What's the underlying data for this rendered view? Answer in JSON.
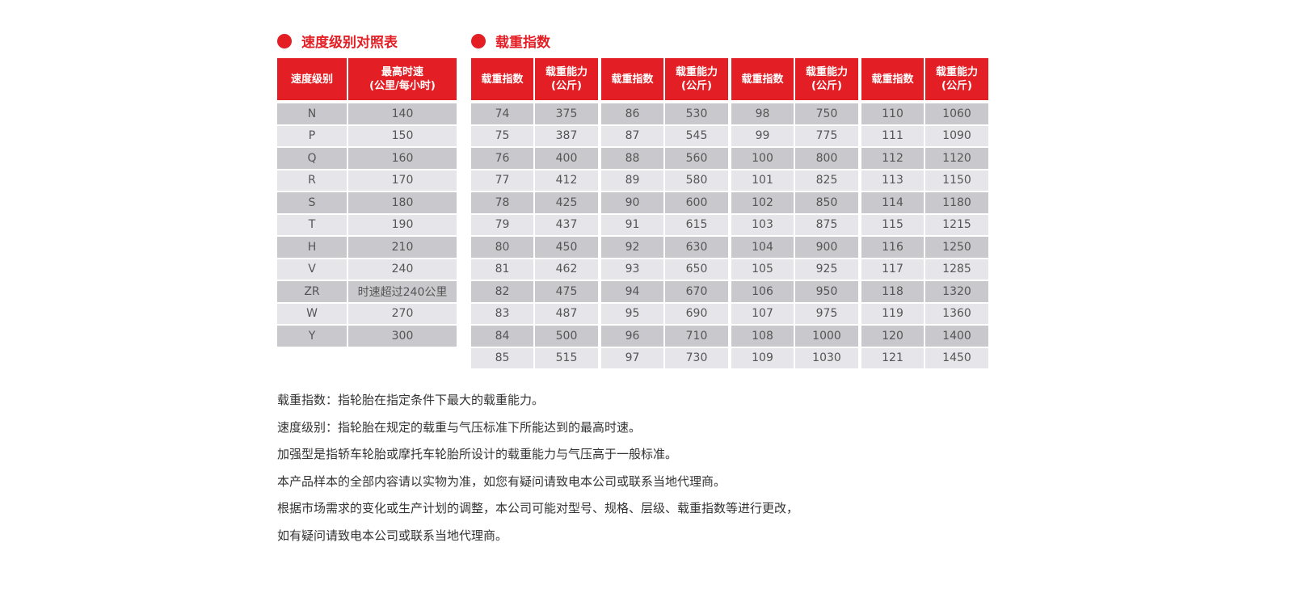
{
  "colors": {
    "accent": "#e31e24",
    "row_dark": "#c9c8cc",
    "row_light": "#e6e5ea"
  },
  "speed": {
    "title": "速度级别对照表",
    "headers": [
      "速度级别",
      "最高时速",
      "(公里/每小时)"
    ],
    "rows": [
      [
        "N",
        "140"
      ],
      [
        "P",
        "150"
      ],
      [
        "Q",
        "160"
      ],
      [
        "R",
        "170"
      ],
      [
        "S",
        "180"
      ],
      [
        "T",
        "190"
      ],
      [
        "H",
        "210"
      ],
      [
        "V",
        "240"
      ],
      [
        "ZR",
        "时速超过240公里"
      ],
      [
        "W",
        "270"
      ],
      [
        "Y",
        "300"
      ]
    ]
  },
  "load": {
    "title": "载重指数",
    "headers": [
      "载重指数",
      "载重能力",
      "(公斤)"
    ],
    "groups": [
      [
        [
          "74",
          "375"
        ],
        [
          "75",
          "387"
        ],
        [
          "76",
          "400"
        ],
        [
          "77",
          "412"
        ],
        [
          "78",
          "425"
        ],
        [
          "79",
          "437"
        ],
        [
          "80",
          "450"
        ],
        [
          "81",
          "462"
        ],
        [
          "82",
          "475"
        ],
        [
          "83",
          "487"
        ],
        [
          "84",
          "500"
        ],
        [
          "85",
          "515"
        ]
      ],
      [
        [
          "86",
          "530"
        ],
        [
          "87",
          "545"
        ],
        [
          "88",
          "560"
        ],
        [
          "89",
          "580"
        ],
        [
          "90",
          "600"
        ],
        [
          "91",
          "615"
        ],
        [
          "92",
          "630"
        ],
        [
          "93",
          "650"
        ],
        [
          "94",
          "670"
        ],
        [
          "95",
          "690"
        ],
        [
          "96",
          "710"
        ],
        [
          "97",
          "730"
        ]
      ],
      [
        [
          "98",
          "750"
        ],
        [
          "99",
          "775"
        ],
        [
          "100",
          "800"
        ],
        [
          "101",
          "825"
        ],
        [
          "102",
          "850"
        ],
        [
          "103",
          "875"
        ],
        [
          "104",
          "900"
        ],
        [
          "105",
          "925"
        ],
        [
          "106",
          "950"
        ],
        [
          "107",
          "975"
        ],
        [
          "108",
          "1000"
        ],
        [
          "109",
          "1030"
        ]
      ],
      [
        [
          "110",
          "1060"
        ],
        [
          "111",
          "1090"
        ],
        [
          "112",
          "1120"
        ],
        [
          "113",
          "1150"
        ],
        [
          "114",
          "1180"
        ],
        [
          "115",
          "1215"
        ],
        [
          "116",
          "1250"
        ],
        [
          "117",
          "1285"
        ],
        [
          "118",
          "1320"
        ],
        [
          "119",
          "1360"
        ],
        [
          "120",
          "1400"
        ],
        [
          "121",
          "1450"
        ]
      ]
    ]
  },
  "notes": [
    "载重指数：指轮胎在指定条件下最大的载重能力。",
    "速度级别：指轮胎在规定的载重与气压标准下所能达到的最高时速。",
    "加强型是指轿车轮胎或摩托车轮胎所设计的载重能力与气压高于一般标准。",
    "本产品样本的全部内容请以实物为准，如您有疑问请致电本公司或联系当地代理商。",
    "根据市场需求的变化或生产计划的调整，本公司可能对型号、规格、层级、载重指数等进行更改，",
    "如有疑问请致电本公司或联系当地代理商。"
  ]
}
